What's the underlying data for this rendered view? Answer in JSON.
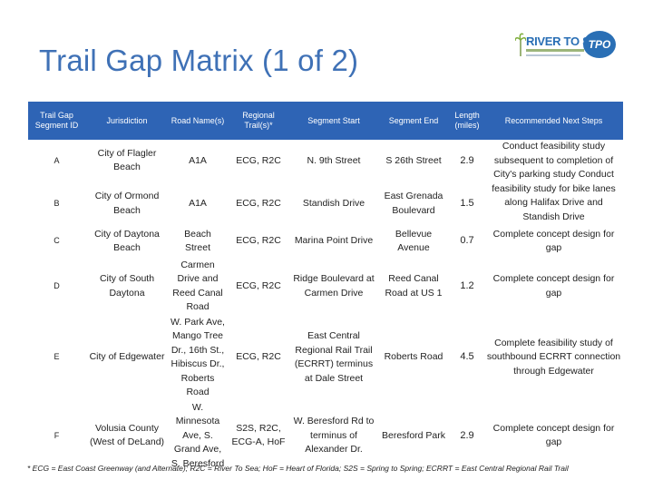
{
  "title": "Trail Gap Matrix (1 of 2)",
  "logo": {
    "brand": "RIVER TO SEA",
    "badge": "TPO"
  },
  "table": {
    "headers": [
      "Trail Gap Segment  ID",
      "Jurisdiction",
      "Road Name(s)",
      "Regional Trail(s)*",
      "Segment Start",
      "Segment End",
      "Length (miles)",
      "Recommended Next Steps"
    ],
    "rows": [
      {
        "id": "A",
        "jurisdiction": "City of Flagler Beach",
        "road": "A1A",
        "trails": "ECG, R2C",
        "start": "N. 9th Street",
        "end": "S 26th Street",
        "length": "2.9"
      },
      {
        "id": "B",
        "jurisdiction": "City of Ormond Beach",
        "road": "A1A",
        "trails": "ECG, R2C",
        "start": "Standish Drive",
        "end": "East Grenada Boulevard",
        "length": "1.5"
      },
      {
        "id": "C",
        "jurisdiction": "City of Daytona Beach",
        "road": "Beach Street",
        "trails": "ECG, R2C",
        "start": "Marina Point Drive",
        "end": "Bellevue Avenue",
        "length": "0.7",
        "steps": "Complete concept design for gap"
      },
      {
        "id": "D",
        "jurisdiction": "City of South Daytona",
        "road": "Carmen Drive and Reed Canal Road",
        "trails": "ECG, R2C",
        "start": "Ridge Boulevard at Carmen Drive",
        "end": "Reed Canal Road at US 1",
        "length": "1.2",
        "steps": "Complete concept design for gap"
      },
      {
        "id": "E",
        "jurisdiction": "City of Edgewater",
        "road": "W. Park Ave, Mango Tree Dr., 16th St., Hibiscus Dr., Roberts Road",
        "trails": "ECG, R2C",
        "start": "East Central Regional Rail Trail (ECRRT) terminus at Dale Street",
        "end": "Roberts Road",
        "length": "4.5",
        "steps": "Complete feasibility study of southbound ECRRT connection through Edgewater"
      },
      {
        "id": "F",
        "jurisdiction": "Volusia County (West of DeLand)",
        "road": "W. Minnesota Ave, S. Grand Ave, S. Beresford",
        "trails": "S2S, R2C, ECG-A, HoF",
        "start": "W. Beresford Rd to terminus of Alexander Dr.",
        "end": "Beresford Park",
        "length": "2.9",
        "steps": "Complete concept design for gap"
      }
    ],
    "merged_steps_ab": "Conduct feasibility study subsequent to completion of City's parking study Conduct feasibility study for bike lanes along Halifax Drive and Standish Drive"
  },
  "footnote": "* ECG = East Coast Greenway (and Alternate);  R2C = River To Sea;  HoF = Heart of Florida;  S2S = Spring to Spring;  ECRRT = East Central Regional Rail Trail"
}
